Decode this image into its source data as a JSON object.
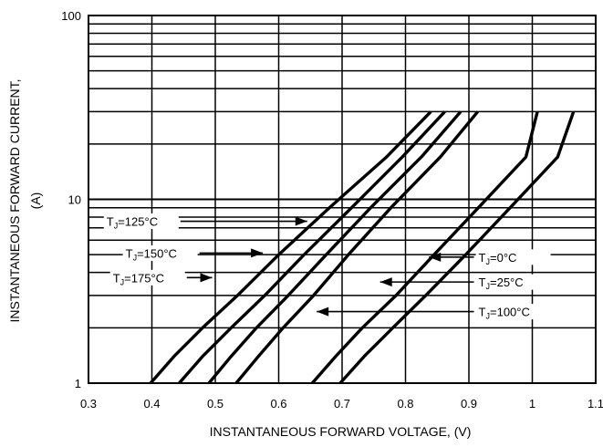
{
  "chart_data": {
    "type": "line",
    "title": "",
    "xlabel": "INSTANTANEOUS FORWARD VOLTAGE,  (V)",
    "ylabel_line1": "INSTANTANEOUS FORWARD CURRENT,",
    "ylabel_line2": "(A)",
    "xlim": [
      0.3,
      1.1
    ],
    "ylim": [
      1,
      100
    ],
    "yscale": "log",
    "grid": true,
    "x_ticks": [
      "0.3",
      "0.4",
      "0.5",
      "0.6",
      "0.7",
      "0.8",
      "0.9",
      "1",
      "1.1"
    ],
    "y_ticks": [
      "1",
      "10",
      "100"
    ],
    "series": [
      {
        "name": "TJ=175°C",
        "subscript_prefix": "T",
        "subscript": "J",
        "suffix": "=175°C",
        "x": [
          0.398,
          0.435,
          0.48,
          0.535,
          0.6,
          0.68,
          0.77,
          0.84
        ],
        "y": [
          1,
          1.4,
          2,
          3,
          5,
          9,
          17,
          30
        ]
      },
      {
        "name": "TJ=150°C",
        "subscript_prefix": "T",
        "subscript": "J",
        "suffix": "=150°C",
        "x": [
          0.443,
          0.48,
          0.525,
          0.578,
          0.64,
          0.715,
          0.795,
          0.862
        ],
        "y": [
          1,
          1.4,
          2,
          3,
          5,
          9,
          17,
          30
        ]
      },
      {
        "name": "TJ=125°C",
        "subscript_prefix": "T",
        "subscript": "J",
        "suffix": "=125°C",
        "x": [
          0.49,
          0.525,
          0.565,
          0.615,
          0.675,
          0.745,
          0.825,
          0.887
        ],
        "y": [
          1,
          1.4,
          2,
          3,
          5,
          9,
          17,
          30
        ]
      },
      {
        "name": "TJ=100°C",
        "subscript_prefix": "T",
        "subscript": "J",
        "suffix": "=100°C",
        "x": [
          0.533,
          0.568,
          0.607,
          0.655,
          0.71,
          0.777,
          0.855,
          0.914
        ],
        "y": [
          1,
          1.4,
          2,
          3,
          5,
          9,
          17,
          30
        ]
      },
      {
        "name": "TJ=25°C",
        "subscript_prefix": "T",
        "subscript": "J",
        "suffix": "=25°C",
        "x": [
          0.653,
          0.69,
          0.732,
          0.785,
          0.845,
          0.915,
          0.99,
          1.008
        ],
        "y": [
          1,
          1.4,
          2,
          3,
          5,
          9,
          17,
          30
        ]
      },
      {
        "name": "TJ=0°C",
        "subscript_prefix": "T",
        "subscript": "J",
        "suffix": "=0°C",
        "x": [
          0.697,
          0.735,
          0.78,
          0.832,
          0.895,
          0.965,
          1.04,
          1.065
        ],
        "y": [
          1,
          1.4,
          2,
          3,
          5,
          9,
          17,
          30
        ]
      }
    ],
    "annotations": [
      {
        "series": "TJ=125°C",
        "text_side": "left",
        "arrow_to": [
          0.645,
          7.6
        ],
        "anchor": [
          0.445,
          7.6
        ]
      },
      {
        "series": "TJ=150°C",
        "text_side": "left",
        "arrow_to": [
          0.575,
          5.1
        ],
        "anchor": [
          0.475,
          5.1
        ]
      },
      {
        "series": "TJ=175°C",
        "text_side": "left",
        "arrow_to": [
          0.495,
          3.75
        ],
        "anchor": [
          0.455,
          3.75
        ]
      },
      {
        "series": "TJ=0°C",
        "text_side": "right",
        "arrow_to": [
          0.837,
          4.85
        ],
        "anchor": [
          0.908,
          4.85
        ]
      },
      {
        "series": "TJ=25°C",
        "text_side": "right",
        "arrow_to": [
          0.76,
          3.55
        ],
        "anchor": [
          0.908,
          3.55
        ]
      },
      {
        "series": "TJ=100°C",
        "text_side": "right",
        "arrow_to": [
          0.66,
          2.45
        ],
        "anchor": [
          0.908,
          2.45
        ]
      }
    ]
  }
}
